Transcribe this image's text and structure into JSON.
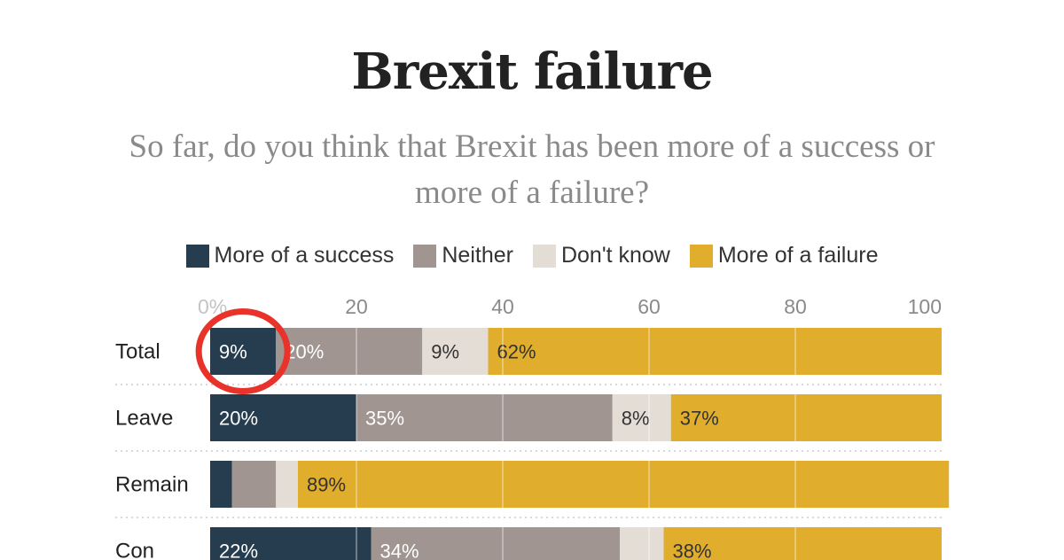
{
  "chart_data": {
    "type": "bar",
    "orientation": "horizontal",
    "stacked": true,
    "title": "Brexit failure",
    "subtitle": "So far, do you think that Brexit has been more of a success or more of a failure?",
    "categories": [
      "Total",
      "Leave",
      "Remain",
      "Con"
    ],
    "series": [
      {
        "name": "More of a success",
        "values": [
          9,
          20,
          3,
          22
        ],
        "labels": [
          "9%",
          "20%",
          "",
          "22%"
        ],
        "color": "#263d4f",
        "label_color": "#ffffff"
      },
      {
        "name": "Neither",
        "values": [
          20,
          35,
          6,
          34
        ],
        "labels": [
          "20%",
          "35%",
          "",
          "34%"
        ],
        "color": "#a09591",
        "label_color": "#ffffff"
      },
      {
        "name": "Don't know",
        "values": [
          9,
          8,
          3,
          6
        ],
        "labels": [
          "9%",
          "8%",
          "",
          ""
        ],
        "color": "#e4ddd5",
        "label_color": "#333333"
      },
      {
        "name": "More of a failure",
        "values": [
          62,
          37,
          89,
          38
        ],
        "labels": [
          "62%",
          "37%",
          "89%",
          "38%"
        ],
        "color": "#e0ad2c",
        "label_color": "#333333"
      }
    ],
    "xticks": [
      "0%",
      "20",
      "40",
      "60",
      "80",
      "100"
    ],
    "xlim": [
      0,
      100
    ],
    "grid": true,
    "legend_position": "top",
    "highlight": {
      "category": "Total",
      "series": "More of a success",
      "shape": "circle",
      "color": "#e8322a"
    }
  }
}
